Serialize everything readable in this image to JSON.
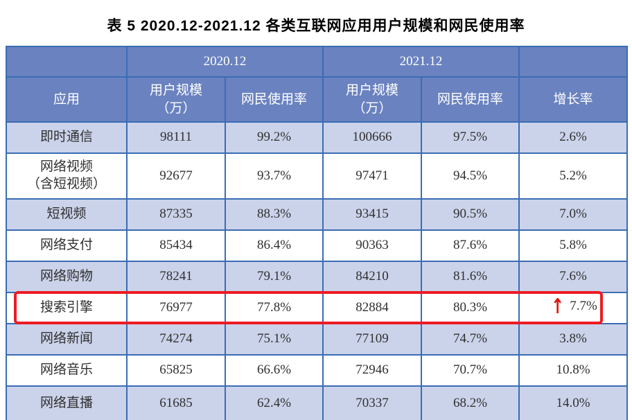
{
  "title": "表 5 2020.12-2021.12 各类互联网应用用户规模和网民使用率",
  "chart_data": {
    "type": "table",
    "groups": {
      "g2020": "2020.12",
      "g2021": "2021.12"
    },
    "headers": {
      "app": "应用",
      "scale_line1": "用户规模",
      "scale_line2": "（万）",
      "usage": "网民使用率",
      "growth": "增长率"
    },
    "rows": [
      {
        "app_lines": [
          "即时通信"
        ],
        "scale_2020": "98111",
        "usage_2020": "99.2%",
        "scale_2021": "100666",
        "usage_2021": "97.5%",
        "growth": "2.6%",
        "highlighted": false
      },
      {
        "app_lines": [
          "网络视频",
          "（含短视频）"
        ],
        "scale_2020": "92677",
        "usage_2020": "93.7%",
        "scale_2021": "97471",
        "usage_2021": "94.5%",
        "growth": "5.2%",
        "highlighted": false
      },
      {
        "app_lines": [
          "短视频"
        ],
        "scale_2020": "87335",
        "usage_2020": "88.3%",
        "scale_2021": "93415",
        "usage_2021": "90.5%",
        "growth": "7.0%",
        "highlighted": false
      },
      {
        "app_lines": [
          "网络支付"
        ],
        "scale_2020": "85434",
        "usage_2020": "86.4%",
        "scale_2021": "90363",
        "usage_2021": "87.6%",
        "growth": "5.8%",
        "highlighted": false
      },
      {
        "app_lines": [
          "网络购物"
        ],
        "scale_2020": "78241",
        "usage_2020": "79.1%",
        "scale_2021": "84210",
        "usage_2021": "81.6%",
        "growth": "7.6%",
        "highlighted": false
      },
      {
        "app_lines": [
          "搜索引擎"
        ],
        "scale_2020": "76977",
        "usage_2020": "77.8%",
        "scale_2021": "82884",
        "usage_2021": "80.3%",
        "growth": "7.7%",
        "highlighted": true
      },
      {
        "app_lines": [
          "网络新闻"
        ],
        "scale_2020": "74274",
        "usage_2020": "75.1%",
        "scale_2021": "77109",
        "usage_2021": "74.7%",
        "growth": "3.8%",
        "highlighted": false
      },
      {
        "app_lines": [
          "网络音乐"
        ],
        "scale_2020": "65825",
        "usage_2020": "66.6%",
        "scale_2021": "72946",
        "usage_2021": "70.7%",
        "growth": "10.8%",
        "highlighted": false
      },
      {
        "app_lines": [
          "网络直播"
        ],
        "scale_2020": "61685",
        "usage_2020": "62.4%",
        "scale_2021": "70337",
        "usage_2021": "68.2%",
        "growth": "14.0%",
        "highlighted": false
      }
    ]
  },
  "highlight": {
    "arrow_glyph": "↑"
  },
  "colors": {
    "header_bg": "#6A82BF",
    "row_shaded": "#CBD3EA",
    "border": "#3A6CB4",
    "highlight_box": "#EC1C24",
    "arrow": "#E3120B",
    "header_text": "#FFFFFF",
    "cell_text": "#303030",
    "title_text": "#000000"
  }
}
